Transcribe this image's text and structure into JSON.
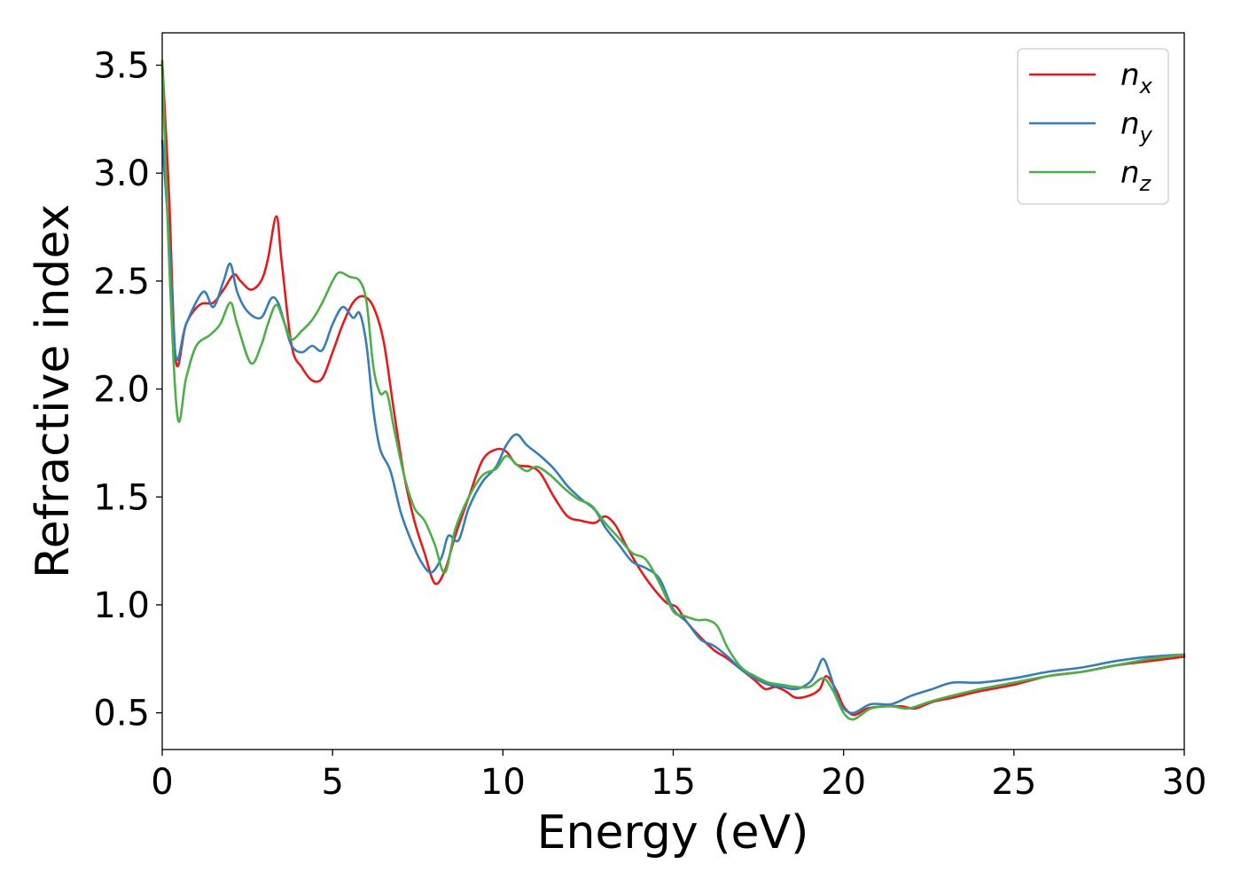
{
  "chart_data": {
    "type": "line",
    "xlabel": "Energy (eV)",
    "ylabel": "Refractive index",
    "xlim": [
      0,
      30
    ],
    "ylim": [
      0.33,
      3.65
    ],
    "xticks": [
      0,
      5,
      10,
      15,
      20,
      25,
      30
    ],
    "xtick_labels": [
      "0",
      "5",
      "10",
      "15",
      "20",
      "25",
      "30"
    ],
    "yticks": [
      0.5,
      1.0,
      1.5,
      2.0,
      2.5,
      3.0,
      3.5
    ],
    "ytick_labels": [
      "0.5",
      "1.0",
      "1.5",
      "2.0",
      "2.5",
      "3.0",
      "3.5"
    ],
    "grid": false,
    "legend_position": "top-right",
    "series": [
      {
        "name_base": "n",
        "name_sub": "x",
        "color": "#e41a1c",
        "points": [
          [
            0,
            3.52
          ],
          [
            0.2,
            2.9
          ],
          [
            0.4,
            2.13
          ],
          [
            0.7,
            2.3
          ],
          [
            1.1,
            2.39
          ],
          [
            1.5,
            2.4
          ],
          [
            1.8,
            2.46
          ],
          [
            2.1,
            2.53
          ],
          [
            2.3,
            2.5
          ],
          [
            2.6,
            2.46
          ],
          [
            2.9,
            2.5
          ],
          [
            3.1,
            2.6
          ],
          [
            3.35,
            2.8
          ],
          [
            3.5,
            2.6
          ],
          [
            3.8,
            2.2
          ],
          [
            4.1,
            2.1
          ],
          [
            4.4,
            2.04
          ],
          [
            4.7,
            2.05
          ],
          [
            5.0,
            2.17
          ],
          [
            5.3,
            2.3
          ],
          [
            5.6,
            2.4
          ],
          [
            5.9,
            2.43
          ],
          [
            6.2,
            2.38
          ],
          [
            6.5,
            2.22
          ],
          [
            6.8,
            1.9
          ],
          [
            7.1,
            1.6
          ],
          [
            7.4,
            1.39
          ],
          [
            7.7,
            1.24
          ],
          [
            8.0,
            1.1
          ],
          [
            8.3,
            1.16
          ],
          [
            8.6,
            1.32
          ],
          [
            9.0,
            1.5
          ],
          [
            9.4,
            1.67
          ],
          [
            9.8,
            1.72
          ],
          [
            10.1,
            1.71
          ],
          [
            10.4,
            1.65
          ],
          [
            10.8,
            1.64
          ],
          [
            11.1,
            1.61
          ],
          [
            11.5,
            1.5
          ],
          [
            11.9,
            1.41
          ],
          [
            12.3,
            1.39
          ],
          [
            12.7,
            1.38
          ],
          [
            13.0,
            1.41
          ],
          [
            13.3,
            1.37
          ],
          [
            13.6,
            1.28
          ],
          [
            14.0,
            1.17
          ],
          [
            14.4,
            1.08
          ],
          [
            14.8,
            1.01
          ],
          [
            15.1,
            0.99
          ],
          [
            15.4,
            0.92
          ],
          [
            15.8,
            0.85
          ],
          [
            16.2,
            0.79
          ],
          [
            16.6,
            0.75
          ],
          [
            17.0,
            0.7
          ],
          [
            17.4,
            0.65
          ],
          [
            17.7,
            0.61
          ],
          [
            18.0,
            0.62
          ],
          [
            18.3,
            0.6
          ],
          [
            18.6,
            0.57
          ],
          [
            19.0,
            0.58
          ],
          [
            19.3,
            0.61
          ],
          [
            19.5,
            0.67
          ],
          [
            19.8,
            0.6
          ],
          [
            20.0,
            0.53
          ],
          [
            20.3,
            0.49
          ],
          [
            20.7,
            0.52
          ],
          [
            21.2,
            0.53
          ],
          [
            21.7,
            0.53
          ],
          [
            22.1,
            0.52
          ],
          [
            22.6,
            0.55
          ],
          [
            23.2,
            0.57
          ],
          [
            24.0,
            0.6
          ],
          [
            25.0,
            0.63
          ],
          [
            26.0,
            0.67
          ],
          [
            27.0,
            0.69
          ],
          [
            28.0,
            0.72
          ],
          [
            29.0,
            0.74
          ],
          [
            30.0,
            0.76
          ]
        ]
      },
      {
        "name_base": "n",
        "name_sub": "y",
        "color": "#377eb8",
        "points": [
          [
            0,
            3.15
          ],
          [
            0.2,
            2.7
          ],
          [
            0.4,
            2.15
          ],
          [
            0.7,
            2.3
          ],
          [
            1.2,
            2.45
          ],
          [
            1.5,
            2.38
          ],
          [
            1.8,
            2.5
          ],
          [
            2.0,
            2.58
          ],
          [
            2.2,
            2.45
          ],
          [
            2.5,
            2.36
          ],
          [
            2.9,
            2.33
          ],
          [
            3.2,
            2.42
          ],
          [
            3.4,
            2.4
          ],
          [
            3.6,
            2.3
          ],
          [
            3.8,
            2.2
          ],
          [
            4.1,
            2.17
          ],
          [
            4.4,
            2.2
          ],
          [
            4.7,
            2.18
          ],
          [
            5.0,
            2.3
          ],
          [
            5.3,
            2.38
          ],
          [
            5.6,
            2.33
          ],
          [
            5.8,
            2.35
          ],
          [
            6.0,
            2.2
          ],
          [
            6.2,
            1.9
          ],
          [
            6.4,
            1.72
          ],
          [
            6.7,
            1.62
          ],
          [
            7.0,
            1.43
          ],
          [
            7.3,
            1.3
          ],
          [
            7.6,
            1.2
          ],
          [
            7.9,
            1.15
          ],
          [
            8.2,
            1.22
          ],
          [
            8.4,
            1.32
          ],
          [
            8.7,
            1.3
          ],
          [
            9.0,
            1.45
          ],
          [
            9.4,
            1.57
          ],
          [
            9.8,
            1.64
          ],
          [
            10.1,
            1.74
          ],
          [
            10.4,
            1.79
          ],
          [
            10.7,
            1.74
          ],
          [
            11.1,
            1.69
          ],
          [
            11.5,
            1.63
          ],
          [
            11.9,
            1.55
          ],
          [
            12.3,
            1.49
          ],
          [
            12.7,
            1.44
          ],
          [
            13.0,
            1.36
          ],
          [
            13.4,
            1.28
          ],
          [
            13.8,
            1.2
          ],
          [
            14.2,
            1.17
          ],
          [
            14.6,
            1.12
          ],
          [
            15.0,
            0.98
          ],
          [
            15.4,
            0.92
          ],
          [
            15.8,
            0.84
          ],
          [
            16.2,
            0.81
          ],
          [
            16.6,
            0.76
          ],
          [
            17.0,
            0.7
          ],
          [
            17.4,
            0.66
          ],
          [
            17.8,
            0.63
          ],
          [
            18.2,
            0.62
          ],
          [
            18.6,
            0.61
          ],
          [
            19.0,
            0.64
          ],
          [
            19.2,
            0.69
          ],
          [
            19.4,
            0.75
          ],
          [
            19.6,
            0.68
          ],
          [
            19.8,
            0.58
          ],
          [
            20.0,
            0.52
          ],
          [
            20.3,
            0.5
          ],
          [
            20.8,
            0.54
          ],
          [
            21.4,
            0.54
          ],
          [
            22.0,
            0.58
          ],
          [
            22.6,
            0.61
          ],
          [
            23.2,
            0.64
          ],
          [
            24.0,
            0.64
          ],
          [
            25.0,
            0.66
          ],
          [
            26.0,
            0.69
          ],
          [
            27.0,
            0.71
          ],
          [
            28.0,
            0.74
          ],
          [
            29.0,
            0.76
          ],
          [
            30.0,
            0.77
          ]
        ]
      },
      {
        "name_base": "n",
        "name_sub": "z",
        "color": "#4daf4a",
        "points": [
          [
            0,
            3.52
          ],
          [
            0.2,
            2.6
          ],
          [
            0.45,
            1.87
          ],
          [
            0.7,
            2.05
          ],
          [
            1.0,
            2.2
          ],
          [
            1.4,
            2.25
          ],
          [
            1.7,
            2.3
          ],
          [
            2.0,
            2.4
          ],
          [
            2.2,
            2.3
          ],
          [
            2.6,
            2.12
          ],
          [
            2.9,
            2.2
          ],
          [
            3.1,
            2.3
          ],
          [
            3.35,
            2.39
          ],
          [
            3.6,
            2.3
          ],
          [
            3.8,
            2.23
          ],
          [
            4.1,
            2.27
          ],
          [
            4.4,
            2.32
          ],
          [
            4.7,
            2.4
          ],
          [
            5.0,
            2.5
          ],
          [
            5.2,
            2.54
          ],
          [
            5.5,
            2.52
          ],
          [
            5.8,
            2.5
          ],
          [
            6.0,
            2.4
          ],
          [
            6.2,
            2.1
          ],
          [
            6.4,
            1.98
          ],
          [
            6.6,
            1.98
          ],
          [
            6.8,
            1.82
          ],
          [
            7.1,
            1.6
          ],
          [
            7.4,
            1.45
          ],
          [
            7.7,
            1.39
          ],
          [
            8.0,
            1.28
          ],
          [
            8.3,
            1.15
          ],
          [
            8.6,
            1.35
          ],
          [
            9.0,
            1.5
          ],
          [
            9.4,
            1.6
          ],
          [
            9.8,
            1.63
          ],
          [
            10.1,
            1.69
          ],
          [
            10.4,
            1.65
          ],
          [
            10.7,
            1.62
          ],
          [
            11.0,
            1.64
          ],
          [
            11.4,
            1.6
          ],
          [
            11.8,
            1.54
          ],
          [
            12.2,
            1.49
          ],
          [
            12.6,
            1.46
          ],
          [
            13.0,
            1.38
          ],
          [
            13.4,
            1.31
          ],
          [
            13.8,
            1.24
          ],
          [
            14.2,
            1.21
          ],
          [
            14.6,
            1.1
          ],
          [
            15.0,
            0.97
          ],
          [
            15.3,
            0.95
          ],
          [
            15.7,
            0.93
          ],
          [
            16.0,
            0.93
          ],
          [
            16.3,
            0.9
          ],
          [
            16.6,
            0.8
          ],
          [
            17.0,
            0.71
          ],
          [
            17.4,
            0.67
          ],
          [
            17.8,
            0.64
          ],
          [
            18.2,
            0.63
          ],
          [
            18.6,
            0.62
          ],
          [
            19.0,
            0.62
          ],
          [
            19.4,
            0.66
          ],
          [
            19.7,
            0.6
          ],
          [
            20.0,
            0.5
          ],
          [
            20.3,
            0.47
          ],
          [
            20.8,
            0.52
          ],
          [
            21.4,
            0.53
          ],
          [
            21.9,
            0.52
          ],
          [
            22.5,
            0.55
          ],
          [
            23.2,
            0.58
          ],
          [
            24.0,
            0.61
          ],
          [
            25.0,
            0.64
          ],
          [
            26.0,
            0.67
          ],
          [
            27.0,
            0.69
          ],
          [
            28.0,
            0.72
          ],
          [
            29.0,
            0.75
          ],
          [
            30.0,
            0.77
          ]
        ]
      }
    ]
  }
}
